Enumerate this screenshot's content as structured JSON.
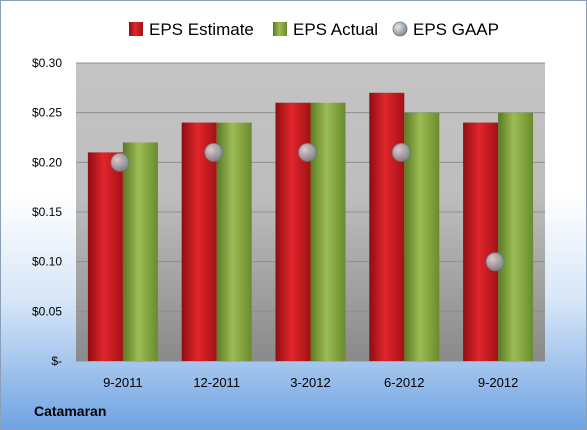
{
  "chart_data": {
    "type": "bar",
    "categories": [
      "9-2011",
      "12-2011",
      "3-2012",
      "6-2012",
      "9-2012"
    ],
    "series": [
      {
        "name": "EPS Estimate",
        "values": [
          0.21,
          0.24,
          0.26,
          0.27,
          0.24
        ],
        "color": "#c8151b"
      },
      {
        "name": "EPS Actual",
        "values": [
          0.22,
          0.24,
          0.26,
          0.25,
          0.25
        ],
        "color": "#7d9e3a"
      },
      {
        "name": "EPS GAAP",
        "values": [
          0.2,
          0.21,
          0.21,
          0.21,
          0.1
        ],
        "color": "#9aa4ad",
        "marker": "circle"
      }
    ],
    "ylim": [
      0,
      0.3
    ],
    "yticks": [
      0,
      0.05,
      0.1,
      0.15,
      0.2,
      0.25,
      0.3
    ],
    "ytick_labels": [
      "$-",
      "$0.05",
      "$0.10",
      "$0.15",
      "$0.20",
      "$0.25",
      "$0.30"
    ],
    "grid": true,
    "legend_position": "top"
  },
  "company": "Catamaran"
}
